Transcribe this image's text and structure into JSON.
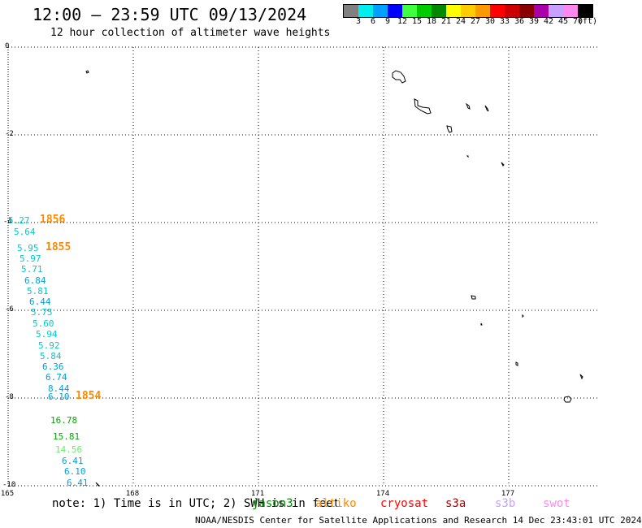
{
  "header": {
    "title": "12:00 – 23:59 UTC 09/13/2024",
    "subtitle": "12 hour collection of altimeter wave heights"
  },
  "colorbar": {
    "unit": "(ft)",
    "bins": [
      {
        "label": "3",
        "color": "#808080"
      },
      {
        "label": "6",
        "color": "#00eeee"
      },
      {
        "label": "9",
        "color": "#00a0ff"
      },
      {
        "label": "12",
        "color": "#0000ff"
      },
      {
        "label": "15",
        "color": "#40ff40"
      },
      {
        "label": "18",
        "color": "#00cc00"
      },
      {
        "label": "21",
        "color": "#008800"
      },
      {
        "label": "24",
        "color": "#ffff00"
      },
      {
        "label": "27",
        "color": "#ffcc00"
      },
      {
        "label": "30",
        "color": "#ff9900"
      },
      {
        "label": "33",
        "color": "#ff0000"
      },
      {
        "label": "36",
        "color": "#cc0000"
      },
      {
        "label": "39",
        "color": "#880000"
      },
      {
        "label": "42",
        "color": "#aa00aa"
      },
      {
        "label": "45",
        "color": "#c8a0ff"
      },
      {
        "label": "70",
        "color": "#ff88ee"
      },
      {
        "label": "",
        "color": "#000000"
      }
    ]
  },
  "axes": {
    "lat_ticks": [
      "0",
      "-2",
      "-4",
      "-6",
      "-8",
      "-10"
    ],
    "lon_ticks": [
      "165",
      "168",
      "171",
      "174",
      "177"
    ]
  },
  "observations": [
    {
      "text": "5.27",
      "color": "#00cccc"
    },
    {
      "text": "1856",
      "color": "#ff8800"
    },
    {
      "text": "5.64",
      "color": "#00cccc"
    },
    {
      "text": "5.95",
      "color": "#00cccc"
    },
    {
      "text": "1855",
      "color": "#ff8800"
    },
    {
      "text": "5.97",
      "color": "#00cccc"
    },
    {
      "text": "5.71",
      "color": "#00cccc"
    },
    {
      "text": "6.84",
      "color": "#00a0e0"
    },
    {
      "text": "5.81",
      "color": "#00cccc"
    },
    {
      "text": "6.44",
      "color": "#00a0e0"
    },
    {
      "text": "5.75",
      "color": "#00cccc"
    },
    {
      "text": "5.60",
      "color": "#00cccc"
    },
    {
      "text": "5.94",
      "color": "#00cccc"
    },
    {
      "text": "5.92",
      "color": "#00cccc"
    },
    {
      "text": "5.84",
      "color": "#00cccc"
    },
    {
      "text": "6.36",
      "color": "#00a0e0"
    },
    {
      "text": "6.74",
      "color": "#00a0e0"
    },
    {
      "text": "8.44",
      "color": "#00a0e0"
    },
    {
      "text": "6.10",
      "color": "#00a0e0"
    },
    {
      "text": "1854",
      "color": "#ff8800"
    },
    {
      "text": "16.78",
      "color": "#00aa00"
    },
    {
      "text": "15.81",
      "color": "#00aa00"
    },
    {
      "text": "14.56",
      "color": "#66ee66"
    },
    {
      "text": "6.41",
      "color": "#00a0e0"
    },
    {
      "text": "6.10",
      "color": "#00a0e0"
    },
    {
      "text": "6.41",
      "color": "#00a0e0"
    }
  ],
  "note": "note: 1) Time is in UTC; 2) SWH is in feet",
  "satellites": [
    {
      "name": "jason3",
      "color": "#008800"
    },
    {
      "name": "altiko",
      "color": "#ff8800"
    },
    {
      "name": "cryosat",
      "color": "#ff0000"
    },
    {
      "name": "s3a",
      "color": "#aa0000"
    },
    {
      "name": "s3b",
      "color": "#c8a0ff"
    },
    {
      "name": "swot",
      "color": "#ff88ee"
    }
  ],
  "footer": "NOAA/NESDIS Center for Satellite Applications and Research   14 Dec 23:43:01 UTC 2024"
}
